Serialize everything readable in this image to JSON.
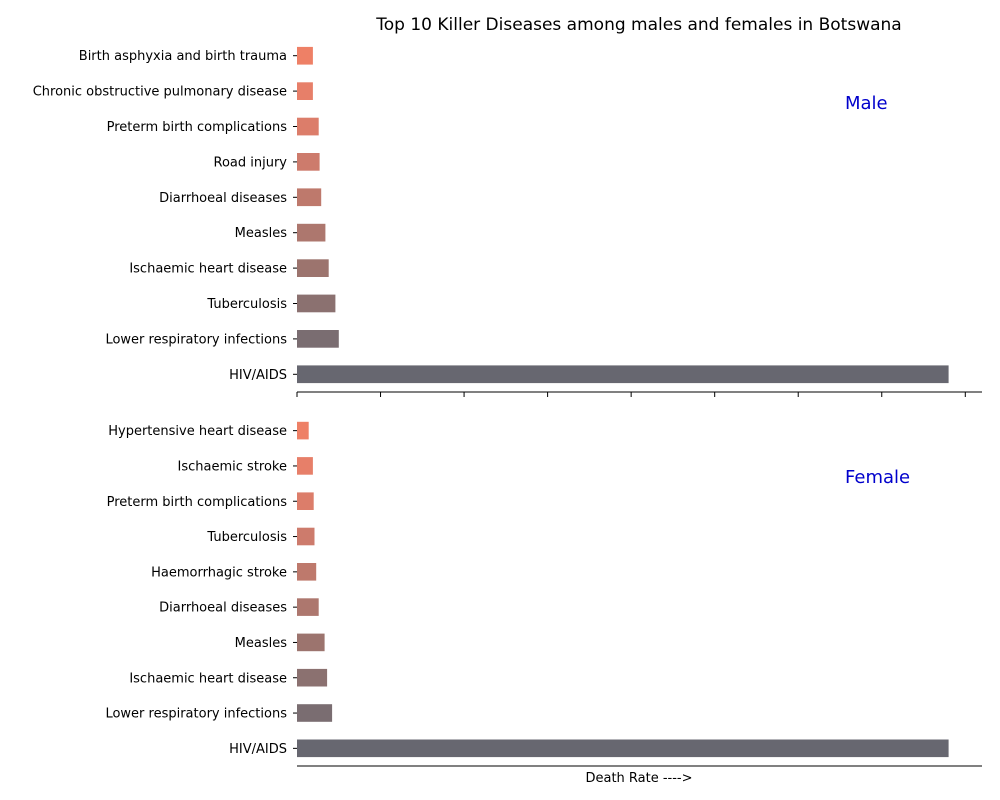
{
  "chart_data": [
    {
      "type": "bar",
      "orientation": "horizontal",
      "title": "Top 10 Killer Diseases among males and females in Botswana",
      "panel_label": "Male",
      "xlabel": "",
      "categories": [
        "Birth asphyxia and birth trauma",
        "Chronic obstructive pulmonary disease",
        "Preterm birth complications",
        "Road injury",
        "Diarrhoeal diseases",
        "Measles",
        "Ischaemic heart disease",
        "Tuberculosis",
        "Lower respiratory infections",
        "HIV/AIDS"
      ],
      "values": [
        1.9,
        1.9,
        2.6,
        2.7,
        2.9,
        3.4,
        3.8,
        4.6,
        5.0,
        78.0
      ],
      "xlim": [
        0,
        82
      ],
      "colors": [
        "#ee8066",
        "#e77f69",
        "#dc7d6a",
        "#cd7b6c",
        "#be796c",
        "#ad776e",
        "#9c746e",
        "#8b7170",
        "#7a6d71",
        "#676770"
      ]
    },
    {
      "type": "bar",
      "orientation": "horizontal",
      "title": "",
      "panel_label": "Female",
      "xlabel": "Death Rate ---->",
      "categories": [
        "Hypertensive heart disease",
        "Ischaemic stroke",
        "Preterm birth complications",
        "Tuberculosis",
        "Haemorrhagic stroke",
        "Diarrhoeal diseases",
        "Measles",
        "Ischaemic heart disease",
        "Lower respiratory infections",
        "HIV/AIDS"
      ],
      "values": [
        1.4,
        1.9,
        2.0,
        2.1,
        2.3,
        2.6,
        3.3,
        3.6,
        4.2,
        78.0
      ],
      "xlim": [
        0,
        82
      ],
      "colors": [
        "#ee8066",
        "#e77f69",
        "#dc7d6a",
        "#cd7b6c",
        "#be796c",
        "#ad776e",
        "#9c746e",
        "#8b7170",
        "#7a6d71",
        "#676770"
      ]
    }
  ]
}
